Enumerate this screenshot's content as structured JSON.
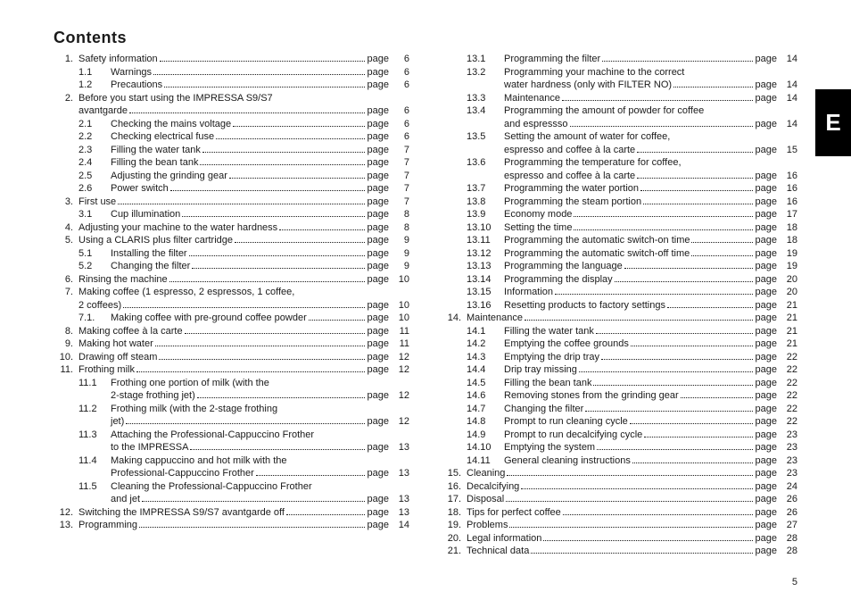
{
  "title": "Contents",
  "sideTab": "E",
  "pageLabel": "page",
  "pageNumber": "5",
  "left": [
    {
      "type": "top",
      "n": "1.",
      "t": "Safety information",
      "p": "6"
    },
    {
      "type": "sub",
      "n": "1.1",
      "t": "Warnings",
      "p": "6"
    },
    {
      "type": "sub",
      "n": "1.2",
      "t": "Precautions",
      "p": "6"
    },
    {
      "type": "top-nop",
      "n": "2.",
      "t": "Before you start using the IMPRESSA S9/S7"
    },
    {
      "type": "cont-top",
      "t": "avantgarde",
      "p": "6"
    },
    {
      "type": "sub",
      "n": "2.1",
      "t": "Checking the mains voltage",
      "p": "6"
    },
    {
      "type": "sub",
      "n": "2.2",
      "t": "Checking electrical fuse",
      "p": "6"
    },
    {
      "type": "sub",
      "n": "2.3",
      "t": "Filling the water tank",
      "p": "7"
    },
    {
      "type": "sub",
      "n": "2.4",
      "t": "Filling the bean tank",
      "p": "7"
    },
    {
      "type": "sub",
      "n": "2.5",
      "t": "Adjusting the grinding gear",
      "p": "7"
    },
    {
      "type": "sub",
      "n": "2.6",
      "t": "Power switch",
      "p": "7"
    },
    {
      "type": "top",
      "n": "3.",
      "t": "First use",
      "p": "7"
    },
    {
      "type": "sub",
      "n": "3.1",
      "t": "Cup illumination",
      "p": "8"
    },
    {
      "type": "top",
      "n": "4.",
      "t": "Adjusting your machine to the water hardness",
      "p": "8"
    },
    {
      "type": "top",
      "n": "5.",
      "t": "Using a CLARIS plus filter cartridge",
      "p": "9"
    },
    {
      "type": "sub",
      "n": "5.1",
      "t": "Installing the filter",
      "p": "9"
    },
    {
      "type": "sub",
      "n": "5.2",
      "t": "Changing the filter",
      "p": "9"
    },
    {
      "type": "top",
      "n": "6.",
      "t": "Rinsing the machine",
      "p": "10"
    },
    {
      "type": "top-nop",
      "n": "7.",
      "t": "Making coffee (1 espresso, 2 espressos, 1 coffee,"
    },
    {
      "type": "cont-top",
      "t": "2 coffees)",
      "p": "10"
    },
    {
      "type": "sub",
      "n": "7.1.",
      "t": "Making coffee with pre-ground coffee powder",
      "p": "10"
    },
    {
      "type": "top",
      "n": "8.",
      "t": "Making coffee à la carte",
      "p": "11"
    },
    {
      "type": "top",
      "n": "9.",
      "t": "Making hot water",
      "p": "11"
    },
    {
      "type": "top",
      "n": "10.",
      "t": "Drawing off steam",
      "p": "12"
    },
    {
      "type": "top",
      "n": "11.",
      "t": "Frothing milk",
      "p": "12"
    },
    {
      "type": "sub",
      "n": "11.1",
      "t": "Frothing one portion of milk (with the"
    },
    {
      "type": "cont",
      "t": "2-stage frothing jet)",
      "p": "12"
    },
    {
      "type": "sub",
      "n": "11.2",
      "t": "Frothing milk (with the 2-stage frothing"
    },
    {
      "type": "cont",
      "t": "jet)",
      "p": "12"
    },
    {
      "type": "sub",
      "n": "11.3",
      "t": "Attaching the Professional-Cappuccino Frother"
    },
    {
      "type": "cont",
      "t": "to the IMPRESSA",
      "p": "13"
    },
    {
      "type": "sub",
      "n": "11.4",
      "t": "Making cappuccino and hot milk with the"
    },
    {
      "type": "cont",
      "t": "Professional-Cappuccino Frother",
      "p": "13"
    },
    {
      "type": "sub",
      "n": "11.5",
      "t": "Cleaning the Professional-Cappuccino Frother"
    },
    {
      "type": "cont",
      "t": "and jet",
      "p": "13"
    },
    {
      "type": "top",
      "n": "12.",
      "t": "Switching the IMPRESSA S9/S7 avantgarde off",
      "p": "13"
    },
    {
      "type": "top",
      "n": "13.",
      "t": "Programming",
      "p": "14"
    }
  ],
  "right": [
    {
      "type": "sub",
      "wide": true,
      "n": "13.1",
      "t": "Programming the filter",
      "p": "14"
    },
    {
      "type": "sub-nop",
      "wide": true,
      "n": "13.2",
      "t": "Programming your machine to the correct"
    },
    {
      "type": "cont",
      "wide": true,
      "t": "water hardness (only with FILTER NO)",
      "p": "14"
    },
    {
      "type": "sub",
      "wide": true,
      "n": "13.3",
      "t": "Maintenance",
      "p": "14"
    },
    {
      "type": "sub-nop",
      "wide": true,
      "n": "13.4",
      "t": "Programming the amount of powder for coffee"
    },
    {
      "type": "cont",
      "wide": true,
      "t": "and espressso",
      "p": "14"
    },
    {
      "type": "sub-nop",
      "wide": true,
      "n": "13.5",
      "t": "Setting the amount of water for coffee,"
    },
    {
      "type": "cont",
      "wide": true,
      "t": "espresso and coffee à la carte",
      "p": "15"
    },
    {
      "type": "sub-nop",
      "wide": true,
      "n": "13.6",
      "t": "Programming the temperature for coffee,"
    },
    {
      "type": "cont",
      "wide": true,
      "t": "espresso and coffee à la carte",
      "p": "16"
    },
    {
      "type": "sub",
      "wide": true,
      "n": "13.7",
      "t": "Programming the water portion",
      "p": "16"
    },
    {
      "type": "sub",
      "wide": true,
      "n": "13.8",
      "t": "Programming the steam portion",
      "p": "16"
    },
    {
      "type": "sub",
      "wide": true,
      "n": "13.9",
      "t": "Economy mode",
      "p": "17"
    },
    {
      "type": "sub",
      "wide": true,
      "n": "13.10",
      "t": "Setting the time",
      "p": "18"
    },
    {
      "type": "sub",
      "wide": true,
      "n": "13.11",
      "t": "Programming the automatic switch-on time",
      "p": "18"
    },
    {
      "type": "sub",
      "wide": true,
      "n": "13.12",
      "t": "Programming the automatic switch-off time",
      "p": "19"
    },
    {
      "type": "sub",
      "wide": true,
      "n": "13.13",
      "t": "Programming the language",
      "p": "19"
    },
    {
      "type": "sub",
      "wide": true,
      "n": "13.14",
      "t": "Programming the display",
      "p": "20"
    },
    {
      "type": "sub",
      "wide": true,
      "n": "13.15",
      "t": "Information",
      "p": "20"
    },
    {
      "type": "sub",
      "wide": true,
      "n": "13.16",
      "t": "Resetting products to factory settings",
      "p": "21"
    },
    {
      "type": "top",
      "n": "14.",
      "t": "Maintenance",
      "p": "21"
    },
    {
      "type": "sub",
      "wide": true,
      "n": "14.1",
      "t": "Filling the water tank",
      "p": "21"
    },
    {
      "type": "sub",
      "wide": true,
      "n": "14.2",
      "t": "Emptying the coffee grounds",
      "p": "21"
    },
    {
      "type": "sub",
      "wide": true,
      "n": "14.3",
      "t": "Emptying the drip tray",
      "p": "22"
    },
    {
      "type": "sub",
      "wide": true,
      "n": "14.4",
      "t": "Drip tray missing",
      "p": "22"
    },
    {
      "type": "sub",
      "wide": true,
      "n": "14.5",
      "t": "Filling the bean tank",
      "p": "22"
    },
    {
      "type": "sub",
      "wide": true,
      "n": "14.6",
      "t": "Removing stones from the grinding gear",
      "p": "22"
    },
    {
      "type": "sub",
      "wide": true,
      "n": "14.7",
      "t": "Changing the filter",
      "p": "22"
    },
    {
      "type": "sub",
      "wide": true,
      "n": "14.8",
      "t": "Prompt to run cleaning cycle",
      "p": "22"
    },
    {
      "type": "sub",
      "wide": true,
      "n": "14.9",
      "t": "Prompt to run decalcifying cycle",
      "p": "23"
    },
    {
      "type": "sub",
      "wide": true,
      "n": "14.10",
      "t": "Emptying the system",
      "p": "23"
    },
    {
      "type": "sub",
      "wide": true,
      "n": "14.11",
      "t": "General cleaning instructions",
      "p": "23"
    },
    {
      "type": "top",
      "n": "15.",
      "t": "Cleaning",
      "p": "23"
    },
    {
      "type": "top",
      "n": "16.",
      "t": "Decalcifying",
      "p": "24"
    },
    {
      "type": "top",
      "n": "17.",
      "t": "Disposal",
      "p": "26"
    },
    {
      "type": "top",
      "n": "18.",
      "t": "Tips for perfect coffee",
      "p": "26"
    },
    {
      "type": "top",
      "n": "19.",
      "t": "Problems",
      "p": "27"
    },
    {
      "type": "top",
      "n": "20.",
      "t": "Legal information",
      "p": "28"
    },
    {
      "type": "top",
      "n": "21.",
      "t": "Technical data",
      "p": "28"
    }
  ]
}
